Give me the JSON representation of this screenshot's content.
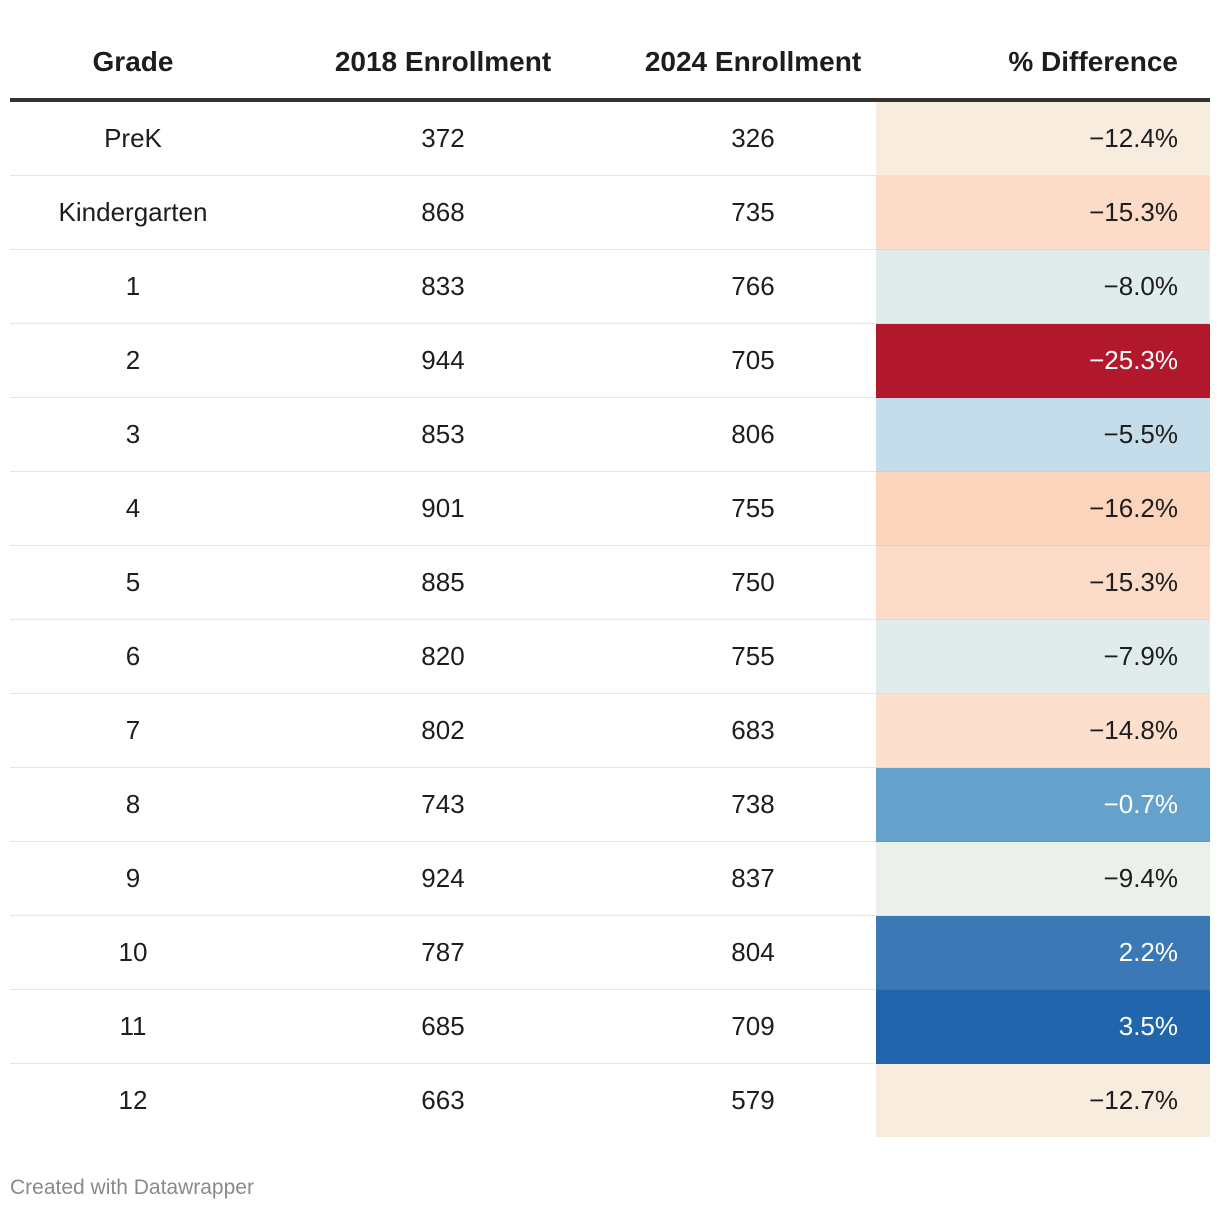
{
  "table": {
    "columns": [
      "Grade",
      "2018 Enrollment",
      "2024 Enrollment",
      "% Difference"
    ],
    "rows": [
      {
        "grade": "PreK",
        "y2018": "372",
        "y2024": "326",
        "diff": "−12.4%",
        "bg": "#f8ecde",
        "fg": "#1d1d1d"
      },
      {
        "grade": "Kindergarten",
        "y2018": "868",
        "y2024": "735",
        "diff": "−15.3%",
        "bg": "#fcdcc9",
        "fg": "#1d1d1d"
      },
      {
        "grade": "1",
        "y2018": "833",
        "y2024": "766",
        "diff": "−8.0%",
        "bg": "#e0ecec",
        "fg": "#1d1d1d"
      },
      {
        "grade": "2",
        "y2018": "944",
        "y2024": "705",
        "diff": "−25.3%",
        "bg": "#b2182b",
        "fg": "#ffffff"
      },
      {
        "grade": "3",
        "y2018": "853",
        "y2024": "806",
        "diff": "−5.5%",
        "bg": "#c5ddeb",
        "fg": "#1d1d1d"
      },
      {
        "grade": "4",
        "y2018": "901",
        "y2024": "755",
        "diff": "−16.2%",
        "bg": "#fcd3bb",
        "fg": "#1d1d1d"
      },
      {
        "grade": "5",
        "y2018": "885",
        "y2024": "750",
        "diff": "−15.3%",
        "bg": "#fcdcc9",
        "fg": "#1d1d1d"
      },
      {
        "grade": "6",
        "y2018": "820",
        "y2024": "755",
        "diff": "−7.9%",
        "bg": "#e0ecec",
        "fg": "#1d1d1d"
      },
      {
        "grade": "7",
        "y2018": "802",
        "y2024": "683",
        "diff": "−14.8%",
        "bg": "#fcdfcd",
        "fg": "#1d1d1d"
      },
      {
        "grade": "8",
        "y2018": "743",
        "y2024": "738",
        "diff": "−0.7%",
        "bg": "#64a2cc",
        "fg": "#ffffff"
      },
      {
        "grade": "9",
        "y2018": "924",
        "y2024": "837",
        "diff": "−9.4%",
        "bg": "#ecf0ea",
        "fg": "#1d1d1d"
      },
      {
        "grade": "10",
        "y2018": "787",
        "y2024": "804",
        "diff": "2.2%",
        "bg": "#3b78b6",
        "fg": "#ffffff"
      },
      {
        "grade": "11",
        "y2018": "685",
        "y2024": "709",
        "diff": "3.5%",
        "bg": "#2166ac",
        "fg": "#ffffff"
      },
      {
        "grade": "12",
        "y2018": "663",
        "y2024": "579",
        "diff": "−12.7%",
        "bg": "#f8ecde",
        "fg": "#1d1d1d"
      }
    ]
  },
  "chart_data": {
    "type": "table",
    "columns": [
      "Grade",
      "2018 Enrollment",
      "2024 Enrollment",
      "% Difference"
    ],
    "categories": [
      "PreK",
      "Kindergarten",
      "1",
      "2",
      "3",
      "4",
      "5",
      "6",
      "7",
      "8",
      "9",
      "10",
      "11",
      "12"
    ],
    "series": [
      {
        "name": "2018 Enrollment",
        "values": [
          372,
          868,
          833,
          944,
          853,
          901,
          885,
          820,
          802,
          743,
          924,
          787,
          685,
          663
        ]
      },
      {
        "name": "2024 Enrollment",
        "values": [
          326,
          735,
          766,
          705,
          806,
          755,
          750,
          755,
          683,
          738,
          837,
          804,
          709,
          579
        ]
      },
      {
        "name": "% Difference",
        "values": [
          -12.4,
          -15.3,
          -8.0,
          -25.3,
          -5.5,
          -16.2,
          -15.3,
          -7.9,
          -14.8,
          -0.7,
          -9.4,
          2.2,
          3.5,
          -12.7
        ]
      }
    ],
    "color_scale": {
      "low": "#b2182b",
      "mid": "#f7f7f7",
      "high": "#2166ac"
    }
  },
  "footer": {
    "credit": "Created with Datawrapper"
  }
}
